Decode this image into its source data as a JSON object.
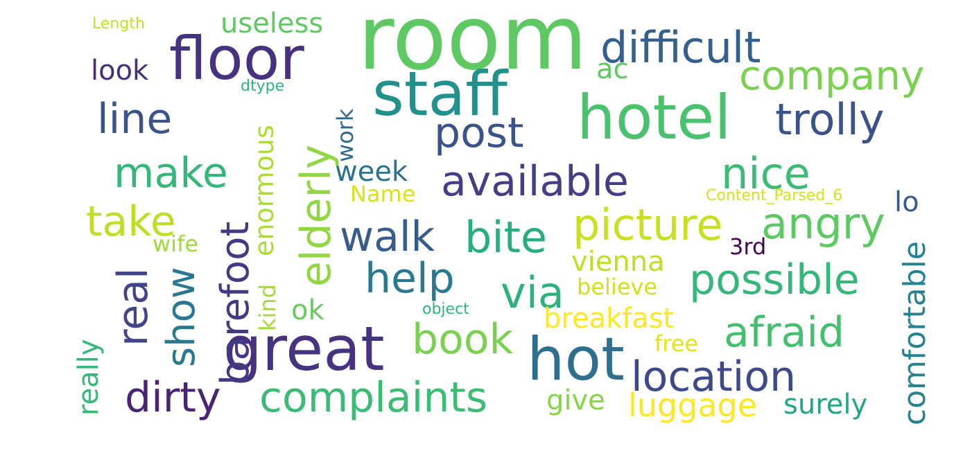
{
  "words": [
    {
      "text": "room",
      "color": "#5ec962"
    },
    {
      "text": "floor",
      "color": "#46327e"
    },
    {
      "text": "staff",
      "color": "#21918c"
    },
    {
      "text": "hotel",
      "color": "#4ac16d"
    },
    {
      "text": "difficult",
      "color": "#355f8d"
    },
    {
      "text": "company",
      "color": "#7ad151"
    },
    {
      "text": "useless",
      "color": "#5ec962"
    },
    {
      "text": "Length",
      "color": "#c2df23"
    },
    {
      "text": "look",
      "color": "#472d7b"
    },
    {
      "text": "ac",
      "color": "#5ec962"
    },
    {
      "text": "dtype",
      "color": "#2db27d"
    },
    {
      "text": "line",
      "color": "#3b528b"
    },
    {
      "text": "trolly",
      "color": "#3b528b"
    },
    {
      "text": "post",
      "color": "#3b528b"
    },
    {
      "text": "make",
      "color": "#35b779"
    },
    {
      "text": "barefoot",
      "color": "#443983"
    },
    {
      "text": "enormous",
      "color": "#addc30"
    },
    {
      "text": "elderly",
      "color": "#90d743"
    },
    {
      "text": "work",
      "color": "#31688e"
    },
    {
      "text": "week",
      "color": "#2c728e"
    },
    {
      "text": "available",
      "color": "#433e85"
    },
    {
      "text": "nice",
      "color": "#3bbb75"
    },
    {
      "text": "Name",
      "color": "#d8e219"
    },
    {
      "text": "Content_Parsed_6",
      "color": "#d2e21b"
    },
    {
      "text": "lo",
      "color": "#38598c"
    },
    {
      "text": "take",
      "color": "#bddf26"
    },
    {
      "text": "walk",
      "color": "#365c8d"
    },
    {
      "text": "bite",
      "color": "#27ad81"
    },
    {
      "text": "picture",
      "color": "#c8e020"
    },
    {
      "text": "angry",
      "color": "#5ec962"
    },
    {
      "text": "comfortable",
      "color": "#26828e"
    },
    {
      "text": "wife",
      "color": "#a0da39"
    },
    {
      "text": "real",
      "color": "#414487"
    },
    {
      "text": "3rd",
      "color": "#440154"
    },
    {
      "text": "show",
      "color": "#2a788e"
    },
    {
      "text": "help",
      "color": "#2a788e"
    },
    {
      "text": "vienna",
      "color": "#bddf26"
    },
    {
      "text": "possible",
      "color": "#35b779"
    },
    {
      "text": "via",
      "color": "#2db27d"
    },
    {
      "text": "believe",
      "color": "#d0e11c"
    },
    {
      "text": "kind",
      "color": "#a2da37"
    },
    {
      "text": "ok",
      "color": "#65cb5e"
    },
    {
      "text": "object",
      "color": "#2fb47c"
    },
    {
      "text": "really",
      "color": "#35b779"
    },
    {
      "text": "great",
      "color": "#46327e"
    },
    {
      "text": "book",
      "color": "#7ad151"
    },
    {
      "text": "breakfast",
      "color": "#fde725"
    },
    {
      "text": "afraid",
      "color": "#44bf70"
    },
    {
      "text": "hot",
      "color": "#2e6f8e"
    },
    {
      "text": "free",
      "color": "#e2e418"
    },
    {
      "text": "location",
      "color": "#3e4989"
    },
    {
      "text": "dirty",
      "color": "#482475"
    },
    {
      "text": "complaints",
      "color": "#3bbb75"
    },
    {
      "text": "give",
      "color": "#86d549"
    },
    {
      "text": "luggage",
      "color": "#fde725"
    },
    {
      "text": "surely",
      "color": "#21a685"
    }
  ]
}
